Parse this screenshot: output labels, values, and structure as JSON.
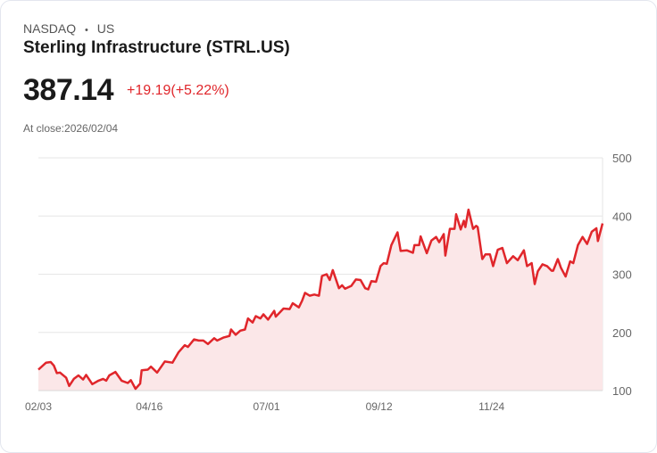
{
  "header": {
    "exchange": "NASDAQ",
    "separator": "•",
    "region": "US",
    "title": "Sterling Infrastructure (STRL.US)",
    "price": "387.14",
    "change": "+19.19(+5.22%)",
    "close_label": "At close:2026/02/04"
  },
  "colors": {
    "line": "#e0262b",
    "fill": "#fbe7e8",
    "grid": "#e6e6e6",
    "text": "#666666"
  },
  "chart_data": {
    "type": "area",
    "title": "Sterling Infrastructure (STRL.US)",
    "xlabel": "",
    "ylabel": "",
    "x_unit": "days since 02/03",
    "xlim": [
      0,
      366
    ],
    "ylim": [
      100,
      500
    ],
    "yticks": [
      100,
      200,
      300,
      400,
      500
    ],
    "xticks": [
      {
        "day": 0,
        "label": "02/03"
      },
      {
        "day": 72,
        "label": "04/16"
      },
      {
        "day": 148,
        "label": "07/01"
      },
      {
        "day": 221,
        "label": "09/12"
      },
      {
        "day": 294,
        "label": "11/24"
      }
    ],
    "grid": true,
    "y_axis_position": "right",
    "series": [
      {
        "name": "STRL.US",
        "x": [
          0,
          5,
          8,
          10,
          12,
          14,
          18,
          20,
          23,
          26,
          29,
          31,
          35,
          39,
          42,
          44,
          46,
          50,
          54,
          58,
          60,
          63,
          66,
          67,
          71,
          73,
          77,
          82,
          87,
          91,
          95,
          97,
          101,
          104,
          107,
          110,
          114,
          116,
          120,
          124,
          125,
          128,
          131,
          134,
          136,
          139,
          141,
          144,
          146,
          149,
          153,
          154,
          159,
          163,
          165,
          169,
          171,
          173,
          176,
          179,
          182,
          184,
          187,
          189,
          191,
          195,
          197,
          199,
          203,
          206,
          209,
          212,
          214,
          216,
          219,
          222,
          224,
          226,
          229,
          233,
          235,
          239,
          243,
          244,
          247,
          248,
          252,
          255,
          258,
          260,
          263,
          264,
          267,
          270,
          271,
          274,
          276,
          277,
          279,
          282,
          284,
          285,
          288,
          290,
          293,
          295,
          298,
          301,
          304,
          308,
          311,
          315,
          317,
          320,
          322,
          324,
          327,
          330,
          333,
          334,
          337,
          339,
          342,
          345,
          347,
          350,
          353,
          356,
          359,
          362,
          363,
          366
        ],
        "values": [
          136,
          148,
          149,
          143,
          130,
          131,
          122,
          108,
          120,
          126,
          119,
          127,
          111,
          117,
          120,
          117,
          126,
          132,
          117,
          113,
          118,
          103,
          112,
          135,
          136,
          141,
          131,
          150,
          148,
          166,
          178,
          175,
          188,
          186,
          186,
          180,
          190,
          186,
          191,
          194,
          205,
          196,
          203,
          205,
          224,
          217,
          228,
          224,
          231,
          222,
          237,
          227,
          241,
          240,
          250,
          243,
          254,
          268,
          263,
          265,
          263,
          297,
          300,
          290,
          307,
          276,
          281,
          275,
          280,
          291,
          290,
          276,
          274,
          288,
          287,
          314,
          319,
          318,
          350,
          372,
          340,
          341,
          337,
          350,
          350,
          365,
          336,
          358,
          364,
          355,
          369,
          332,
          378,
          378,
          403,
          377,
          392,
          381,
          411,
          378,
          383,
          381,
          326,
          334,
          334,
          314,
          342,
          345,
          319,
          331,
          324,
          341,
          314,
          319,
          283,
          305,
          317,
          314,
          306,
          306,
          326,
          311,
          296,
          322,
          319,
          350,
          364,
          352,
          373,
          379,
          357,
          387.14
        ]
      }
    ]
  }
}
